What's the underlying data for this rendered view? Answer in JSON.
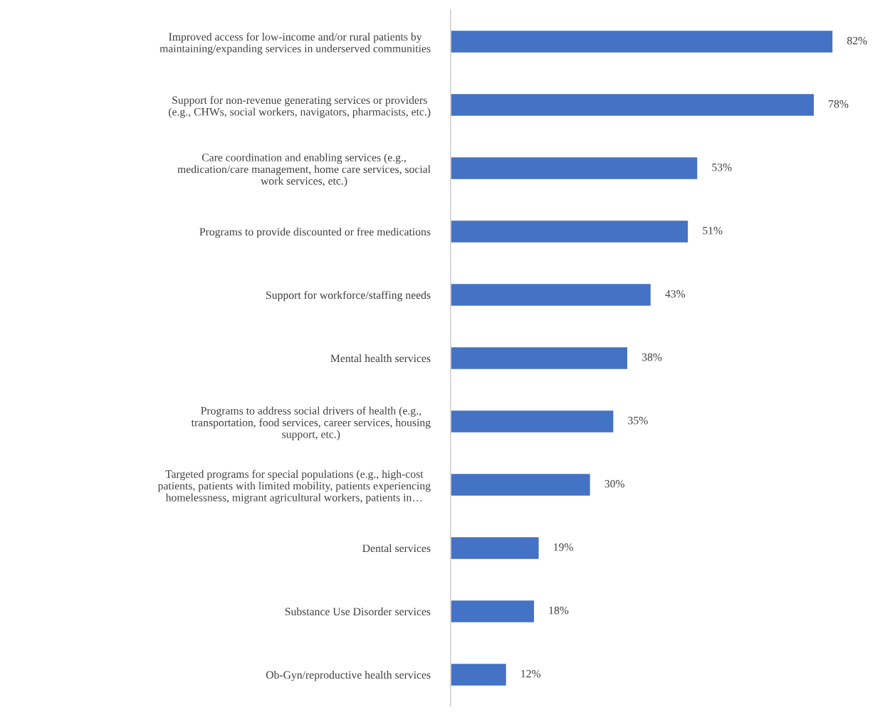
{
  "chart_data": {
    "type": "bar",
    "orientation": "horizontal",
    "categories": [
      "Improved access for low-income and/or rural patients by\nmaintaining/expanding services in underserved communities",
      "Support for non-revenue generating services or providers\n(e.g., CHWs, social workers, navigators, pharmacists, etc.)",
      "Care coordination and enabling services (e.g.,\nmedication/care management, home care services, social\nwork services, etc.)",
      "Programs to provide discounted or free medications",
      "Support for workforce/staffing needs",
      "Mental health services",
      "Programs to address social drivers of health (e.g.,\ntransportation, food services, career services, housing\nsupport, etc.)",
      "Targeted programs for special populations (e.g., high-cost\npatients, patients with limited mobility, patients experiencing\nhomelessness, migrant agricultural workers, patients in…",
      "Dental services",
      "Substance Use Disorder services",
      "Ob-Gyn/reproductive health services"
    ],
    "values": [
      82,
      78,
      53,
      51,
      43,
      38,
      35,
      30,
      19,
      18,
      12
    ],
    "value_labels": [
      "82%",
      "78%",
      "53%",
      "51%",
      "43%",
      "38%",
      "35%",
      "30%",
      "19%",
      "18%",
      "12%"
    ],
    "color": "#4472c4",
    "grid": false,
    "legend": false
  }
}
